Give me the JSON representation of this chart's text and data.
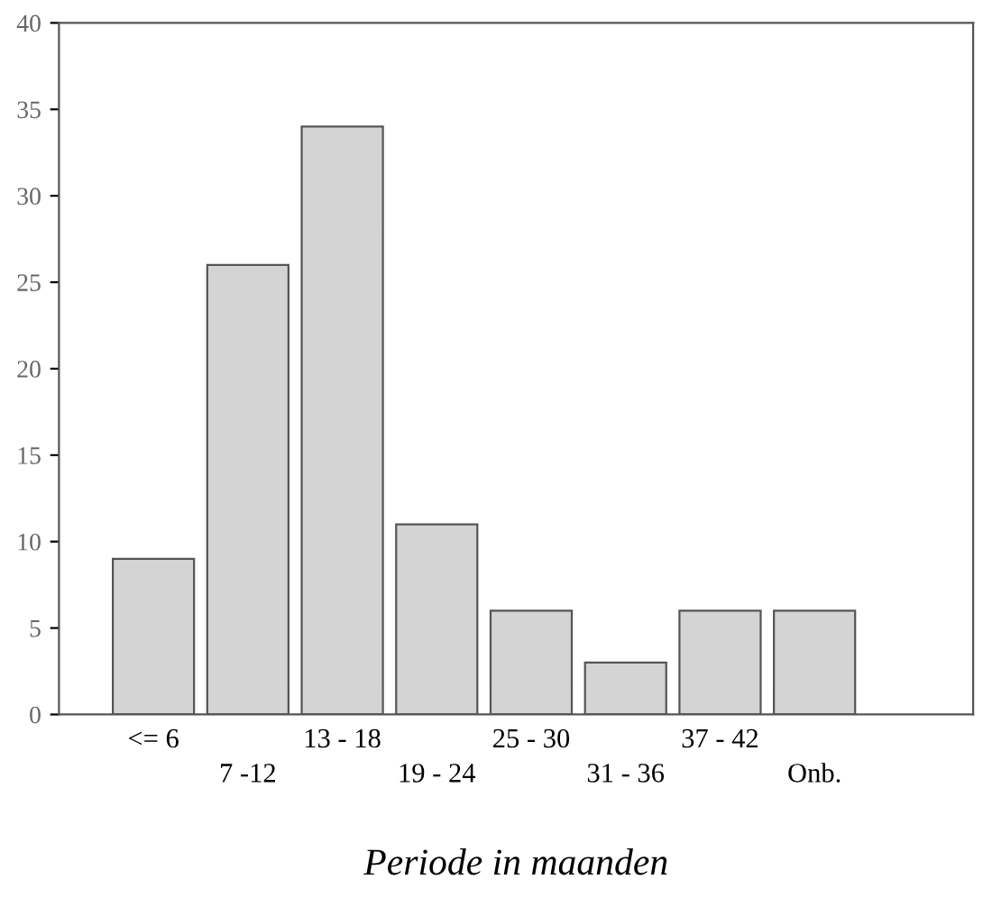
{
  "chart_data": {
    "type": "bar",
    "xlabel": "Periode in maanden",
    "categories": [
      "<= 6",
      "7 -12",
      "13 - 18",
      "19 - 24",
      "25 - 30",
      "31 - 36",
      "37 - 42",
      "Onb."
    ],
    "values": [
      9,
      26,
      34,
      11,
      6,
      3,
      6,
      6
    ],
    "color": "#d4d4d4",
    "ylim": [
      0,
      40
    ],
    "yticks": [
      0,
      5,
      10,
      15,
      20,
      25,
      30,
      35,
      40
    ],
    "grid": false
  }
}
